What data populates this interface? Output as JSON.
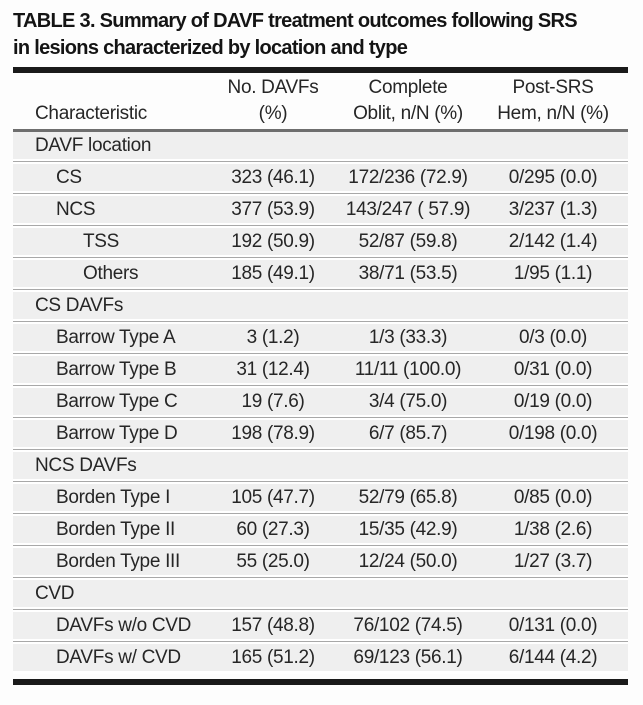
{
  "title": {
    "line1": "TABLE 3. Summary of DAVF treatment outcomes following SRS",
    "line2": "in lesions characterized by location and type"
  },
  "table": {
    "columns": [
      {
        "line1": "",
        "line2": "Characteristic"
      },
      {
        "line1": "No. DAVFs",
        "line2": "(%)"
      },
      {
        "line1": "Complete",
        "line2": "Oblit, n/N (%)"
      },
      {
        "line1": "Post-SRS",
        "line2": "Hem, n/N (%)"
      }
    ],
    "rows": [
      {
        "label": "DAVF location",
        "indent": 0,
        "section": true,
        "values": [
          "",
          "",
          ""
        ]
      },
      {
        "label": "CS",
        "indent": 1,
        "section": false,
        "values": [
          "323 (46.1)",
          "172/236 (72.9)",
          "0/295 (0.0)"
        ]
      },
      {
        "label": "NCS",
        "indent": 1,
        "section": false,
        "values": [
          "377 (53.9)",
          "143/247 ( 57.9)",
          "3/237 (1.3)"
        ]
      },
      {
        "label": "TSS",
        "indent": 2,
        "section": false,
        "values": [
          "192 (50.9)",
          "52/87 (59.8)",
          "2/142 (1.4)"
        ]
      },
      {
        "label": "Others",
        "indent": 2,
        "section": false,
        "values": [
          "185 (49.1)",
          "38/71 (53.5)",
          "1/95 (1.1)"
        ]
      },
      {
        "label": "CS DAVFs",
        "indent": 0,
        "section": true,
        "values": [
          "",
          "",
          ""
        ]
      },
      {
        "label": "Barrow Type A",
        "indent": 1,
        "section": false,
        "values": [
          "3 (1.2)",
          "1/3 (33.3)",
          "0/3 (0.0)"
        ]
      },
      {
        "label": "Barrow Type B",
        "indent": 1,
        "section": false,
        "values": [
          "31 (12.4)",
          "11/11 (100.0)",
          "0/31 (0.0)"
        ]
      },
      {
        "label": "Barrow Type C",
        "indent": 1,
        "section": false,
        "values": [
          "19 (7.6)",
          "3/4 (75.0)",
          "0/19 (0.0)"
        ]
      },
      {
        "label": "Barrow Type D",
        "indent": 1,
        "section": false,
        "values": [
          "198 (78.9)",
          "6/7 (85.7)",
          "0/198 (0.0)"
        ]
      },
      {
        "label": "NCS DAVFs",
        "indent": 0,
        "section": true,
        "values": [
          "",
          "",
          ""
        ]
      },
      {
        "label": "Borden Type I",
        "indent": 1,
        "section": false,
        "values": [
          "105 (47.7)",
          "52/79 (65.8)",
          "0/85 (0.0)"
        ]
      },
      {
        "label": "Borden Type II",
        "indent": 1,
        "section": false,
        "values": [
          "60 (27.3)",
          "15/35 (42.9)",
          "1/38 (2.6)"
        ]
      },
      {
        "label": "Borden Type III",
        "indent": 1,
        "section": false,
        "values": [
          "55 (25.0)",
          "12/24 (50.0)",
          "1/27 (3.7)"
        ]
      },
      {
        "label": "CVD",
        "indent": 0,
        "section": true,
        "values": [
          "",
          "",
          ""
        ]
      },
      {
        "label": "DAVFs w/o CVD",
        "indent": 1,
        "section": false,
        "values": [
          "157 (48.8)",
          "76/102 (74.5)",
          "0/131 (0.0)"
        ]
      },
      {
        "label": "DAVFs w/ CVD",
        "indent": 1,
        "section": false,
        "values": [
          "165 (51.2)",
          "69/123 (56.1)",
          "6/144 (4.2)"
        ]
      }
    ],
    "value_column_names": [
      "value-no-davfs",
      "value-complete-oblit",
      "value-post-srs-hem"
    ]
  },
  "colors": {
    "rule_dark": "#1a1a1a",
    "rule_header": "#6e6e6e",
    "row_bg": "#efefef",
    "row_divider": "#a8a8a8",
    "text": "#262626",
    "page_bg": "#fdfdfd"
  }
}
